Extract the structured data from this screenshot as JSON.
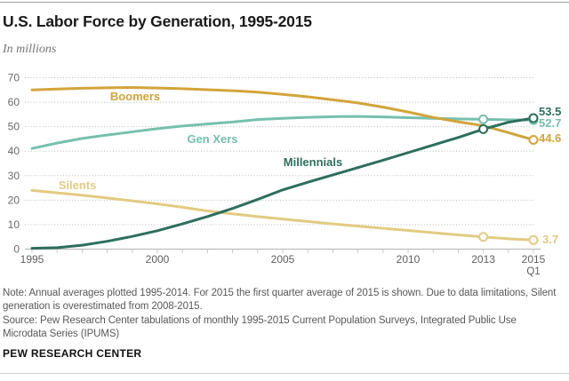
{
  "header": {
    "title": "U.S. Labor Force by Generation, 1995-2015",
    "subtitle": "In millions"
  },
  "chart_data": {
    "type": "line",
    "title": "U.S. Labor Force by Generation, 1995-2015",
    "ylabel": "In millions",
    "xlim": [
      1995,
      2015
    ],
    "ylim": [
      0,
      70
    ],
    "grid": "dotted-horizontal",
    "x": [
      1995,
      1996,
      1997,
      1998,
      1999,
      2000,
      2001,
      2002,
      2003,
      2004,
      2005,
      2006,
      2007,
      2008,
      2009,
      2010,
      2011,
      2012,
      2013,
      2014,
      2015
    ],
    "yticks": [
      0,
      10,
      20,
      30,
      40,
      50,
      60,
      70
    ],
    "xticks": [
      {
        "x": 1995,
        "label": "1995"
      },
      {
        "x": 2000,
        "label": "2000"
      },
      {
        "x": 2005,
        "label": "2005"
      },
      {
        "x": 2010,
        "label": "2010"
      },
      {
        "x": 2013,
        "label": "2013"
      },
      {
        "x": 2015,
        "label": "2015",
        "label2": "Q1"
      }
    ],
    "series": [
      {
        "id": "silents",
        "name": "Silents",
        "color": "#e2cb81",
        "end_label": "3.7",
        "markers": [
          2013,
          2015
        ],
        "values": [
          24.0,
          23.0,
          22.0,
          20.9,
          19.7,
          18.5,
          17.1,
          15.6,
          14.4,
          13.3,
          12.3,
          11.3,
          10.3,
          9.4,
          8.5,
          7.6,
          6.7,
          5.8,
          5.0,
          4.2,
          3.7
        ]
      },
      {
        "id": "genx",
        "name": "Gen Xers",
        "color": "#76c0ae",
        "end_label": "52.7",
        "markers": [
          2013,
          2015
        ],
        "values": [
          41.1,
          43.3,
          45.2,
          46.6,
          47.9,
          49.2,
          50.3,
          51.1,
          51.9,
          52.9,
          53.4,
          53.8,
          54.1,
          54.2,
          54.0,
          53.7,
          53.4,
          53.2,
          53.0,
          52.8,
          52.7
        ]
      },
      {
        "id": "boomers",
        "name": "Boomers",
        "color": "#d2a43a",
        "end_label": "44.6",
        "markers": [
          2015
        ],
        "values": [
          65.0,
          65.4,
          65.7,
          65.9,
          66.0,
          65.8,
          65.5,
          65.1,
          64.7,
          64.1,
          63.2,
          62.2,
          61.0,
          59.7,
          58.0,
          56.0,
          53.8,
          52.0,
          50.4,
          47.6,
          44.6
        ]
      },
      {
        "id": "millennials",
        "name": "Millennials",
        "color": "#2d6e5e",
        "end_label": "53.5",
        "markers": [
          2013,
          2015
        ],
        "values": [
          0.3,
          0.6,
          1.6,
          3.2,
          5.2,
          7.5,
          10.3,
          13.3,
          16.6,
          20.3,
          24.2,
          27.3,
          30.3,
          33.3,
          36.3,
          39.4,
          42.5,
          45.6,
          49.0,
          51.8,
          53.5
        ]
      }
    ]
  },
  "footer": {
    "note": "Note: Annual averages plotted 1995-2014. For 2015 the first quarter average of 2015 is shown. Due to data limitations, Silent generation is overestimated from 2008-2015.",
    "source": "Source: Pew Research Center tabulations of monthly 1995-2015 Current Population Surveys, Integrated Public Use Microdata Series (IPUMS)",
    "brand": "PEW RESEARCH CENTER"
  }
}
